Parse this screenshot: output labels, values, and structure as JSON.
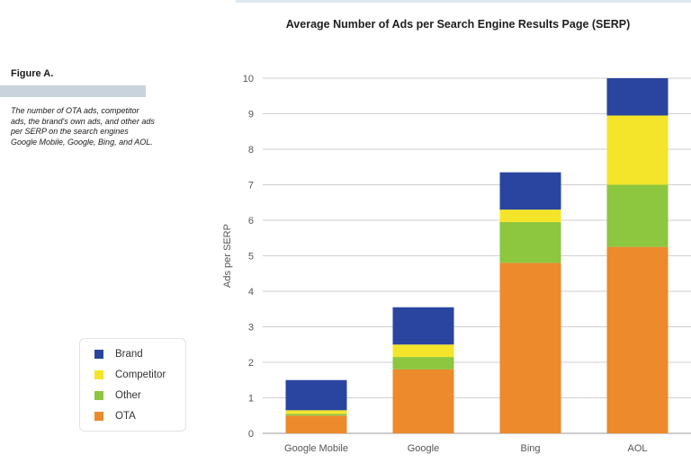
{
  "figure": {
    "label": "Figure A.",
    "caption": "The number of OTA ads, competitor ads, the brand's own ads, and other ads per SERP on the search engines Google Mobile, Google, Bing, and AOL."
  },
  "chart_data": {
    "type": "bar",
    "stacked": true,
    "title": "Average Number of Ads per Search Engine Results Page (SERP)",
    "xlabel": "",
    "ylabel": "Ads per SERP",
    "ylim": [
      0,
      10
    ],
    "yticks": [
      0,
      1,
      2,
      3,
      4,
      5,
      6,
      7,
      8,
      9,
      10
    ],
    "grid": true,
    "legend_position": "left",
    "categories": [
      "Google Mobile",
      "Google",
      "Bing",
      "AOL"
    ],
    "series": [
      {
        "name": "OTA",
        "color": "#ec8a2c",
        "values": [
          0.5,
          1.8,
          4.8,
          5.25
        ]
      },
      {
        "name": "Other",
        "color": "#8dc63f",
        "values": [
          0.05,
          0.35,
          1.15,
          1.75
        ]
      },
      {
        "name": "Competitor",
        "color": "#f5e52a",
        "values": [
          0.1,
          0.35,
          0.35,
          1.95
        ]
      },
      {
        "name": "Brand",
        "color": "#2a45a0",
        "values": [
          0.85,
          1.05,
          1.05,
          1.05
        ]
      }
    ],
    "legend_order": [
      "Brand",
      "Competitor",
      "Other",
      "OTA"
    ]
  }
}
